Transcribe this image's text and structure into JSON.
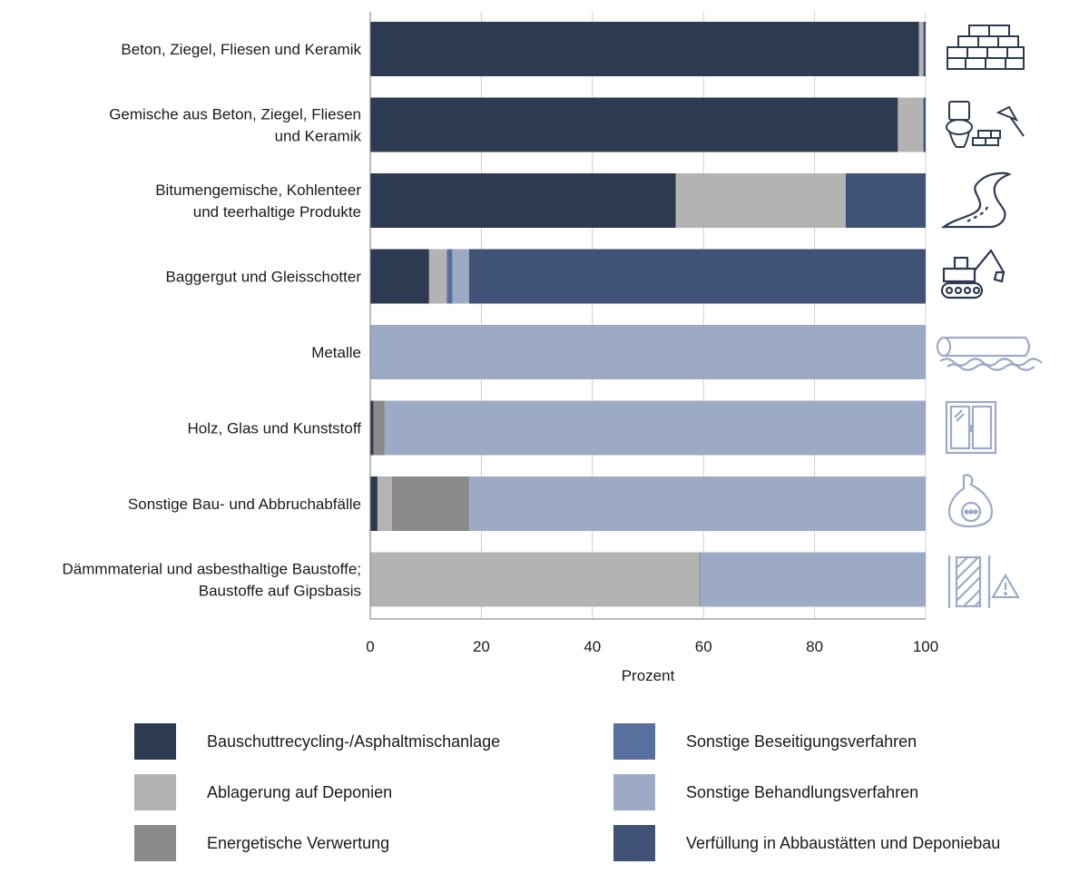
{
  "chart_data": {
    "type": "bar",
    "orientation": "horizontal",
    "stacked": true,
    "xlabel": "Prozent",
    "xlim": [
      0,
      100
    ],
    "xticks": [
      0,
      20,
      40,
      60,
      80,
      100
    ],
    "grid": true,
    "legend_position": "bottom",
    "categories": [
      [
        "Beton, Ziegel, Fliesen und Keramik"
      ],
      [
        "Gemische aus Beton, Ziegel, Fliesen",
        "und Keramik"
      ],
      [
        "Bitumengemische, Kohlenteer",
        "und teerhaltige Produkte"
      ],
      [
        "Baggergut und Gleisschotter"
      ],
      [
        "Metalle"
      ],
      [
        "Holz, Glas und Kunststoff"
      ],
      [
        "Sonstige Bau- und Abbruchabfälle"
      ],
      [
        "Dämmmaterial und asbesthaltige Baustoffe;",
        "Baustoffe auf Gipsbasis"
      ]
    ],
    "series": [
      {
        "name": "Bauschuttrecycling-/Asphaltmischanlage",
        "color": "#2d3a52",
        "values": [
          98.8,
          95.0,
          55.0,
          10.6,
          0.0,
          0.6,
          1.3,
          0.0
        ]
      },
      {
        "name": "Ablagerung auf Deponien",
        "color": "#b3b3b3",
        "values": [
          0.8,
          4.6,
          30.6,
          3.2,
          0.0,
          0.0,
          2.6,
          59.2
        ]
      },
      {
        "name": "Energetische Verwertung",
        "color": "#8a8a8a",
        "values": [
          0.0,
          0.0,
          0.0,
          0.0,
          0.0,
          2.0,
          13.9,
          0.2
        ]
      },
      {
        "name": "Sonstige Beseitigungsverfahren",
        "color": "#58709e",
        "values": [
          0.0,
          0.0,
          0.0,
          1.0,
          0.0,
          0.0,
          0.0,
          0.0
        ]
      },
      {
        "name": "Sonstige Behandlungsverfahren",
        "color": "#9daac6",
        "values": [
          0.0,
          0.0,
          0.0,
          3.0,
          100.0,
          97.4,
          82.2,
          40.6
        ]
      },
      {
        "name": "Verfüllung in Abbaustätten und Deponiebau",
        "color": "#405275",
        "values": [
          0.4,
          0.4,
          14.4,
          82.2,
          0.0,
          0.0,
          0.0,
          0.0
        ]
      }
    ],
    "icons": [
      "bricks-icon",
      "toilet-trowel-bricks-icon",
      "road-icon",
      "excavator-icon",
      "metal-pipe-scrap-icon",
      "window-icon",
      "waste-bag-icon",
      "insulation-warning-icon"
    ]
  }
}
